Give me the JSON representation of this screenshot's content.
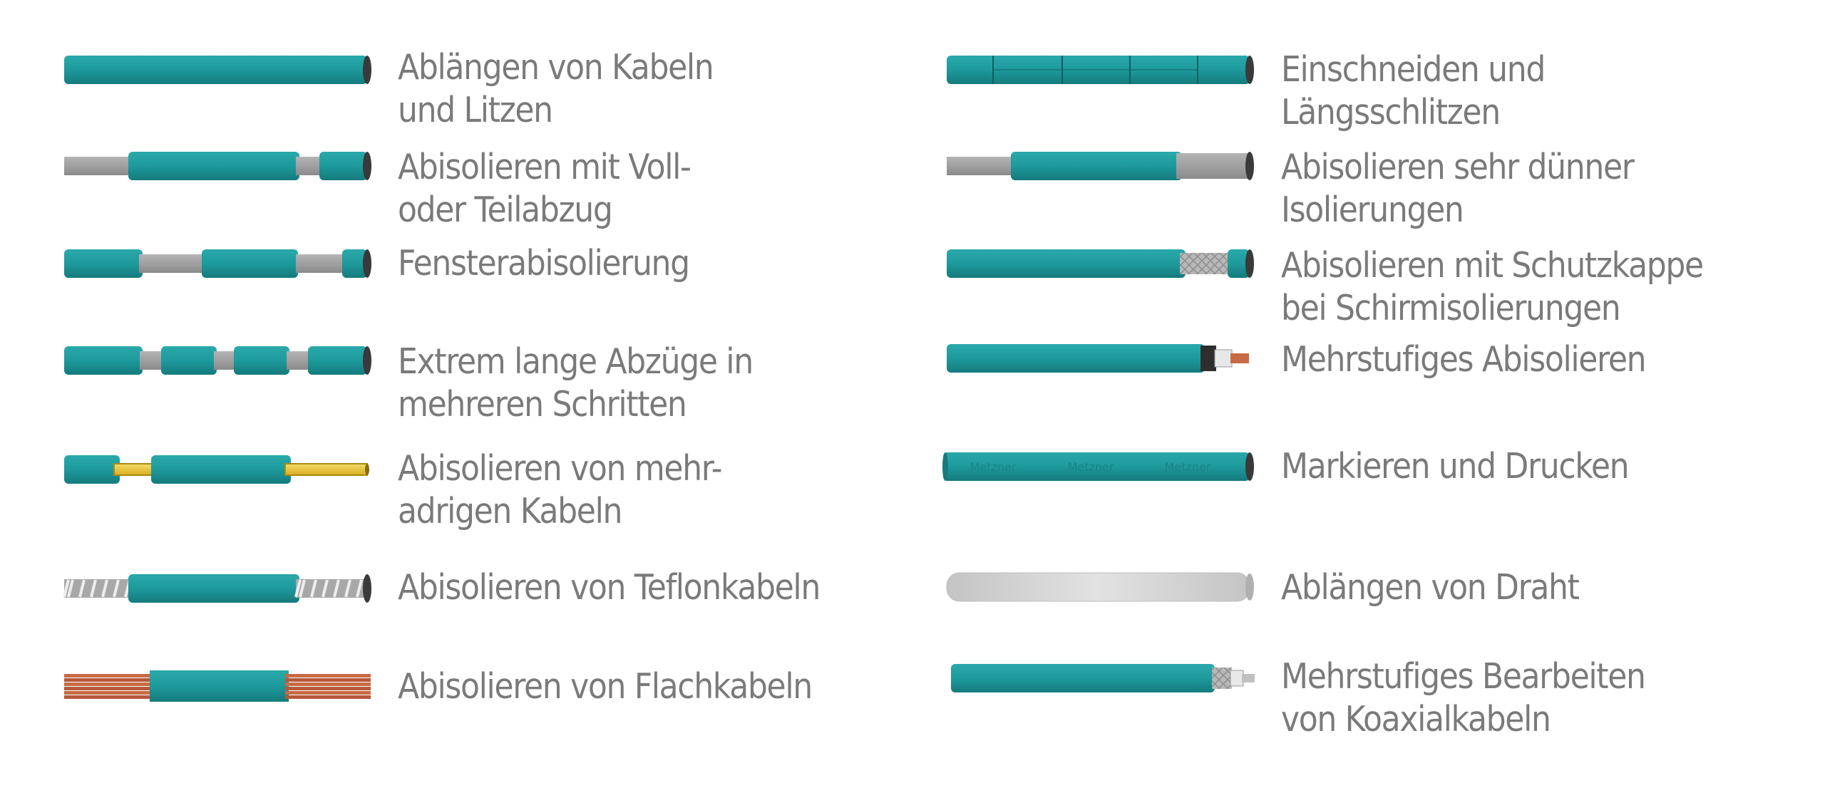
{
  "colors": {
    "insulation": "#1e9a9c",
    "insulation_dark": "#147a7c",
    "end_cap": "#3a3a3a",
    "bare_wire": "#9a9a9a",
    "yellow_core": "#e9c840",
    "copper": "#c86a44",
    "text": "#7a7a7a"
  },
  "items": [
    {
      "id": "l1",
      "lines": [
        "Ablängen von Kabeln",
        "und Litzen"
      ],
      "icon": "plain-cable-icon"
    },
    {
      "id": "l2",
      "lines": [
        "Abisolieren mit Voll-",
        "oder Teilabzug"
      ],
      "icon": "partial-strip-cable-icon"
    },
    {
      "id": "l3",
      "lines": [
        "Fensterabisolierung"
      ],
      "icon": "window-strip-cable-icon"
    },
    {
      "id": "l4",
      "lines": [
        "Extrem lange Abzüge in",
        "mehreren Schritten"
      ],
      "icon": "multi-step-strip-cable-icon"
    },
    {
      "id": "l5",
      "lines": [
        "Abisolieren von mehr-",
        "adrigen Kabeln"
      ],
      "icon": "multi-core-cable-icon"
    },
    {
      "id": "l6",
      "lines": [
        "Abisolieren von Teflonkabeln"
      ],
      "icon": "teflon-cable-icon"
    },
    {
      "id": "l7",
      "lines": [
        "Abisolieren von Flachkabeln"
      ],
      "icon": "flat-cable-icon"
    },
    {
      "id": "r1",
      "lines": [
        "Einschneiden und",
        "Längsschlitzen"
      ],
      "icon": "slit-cable-icon"
    },
    {
      "id": "r2",
      "lines": [
        "Abisolieren sehr dünner",
        "Isolierungen"
      ],
      "icon": "thin-insulation-cable-icon"
    },
    {
      "id": "r3",
      "lines": [
        "Abisolieren mit Schutzkappe",
        "bei Schirmisolierungen"
      ],
      "icon": "shielded-cable-icon"
    },
    {
      "id": "r4",
      "lines": [
        "Mehrstufiges Abisolieren"
      ],
      "icon": "multi-stage-strip-cable-icon"
    },
    {
      "id": "r5",
      "lines": [
        "Markieren und Drucken"
      ],
      "icon": "printed-cable-icon",
      "print_text": "Metzner"
    },
    {
      "id": "r6",
      "lines": [
        "Ablängen von Draht"
      ],
      "icon": "wire-icon"
    },
    {
      "id": "r7",
      "lines": [
        "Mehrstufiges Bearbeiten",
        "von Koaxialkabeln"
      ],
      "icon": "coax-cable-icon"
    }
  ]
}
